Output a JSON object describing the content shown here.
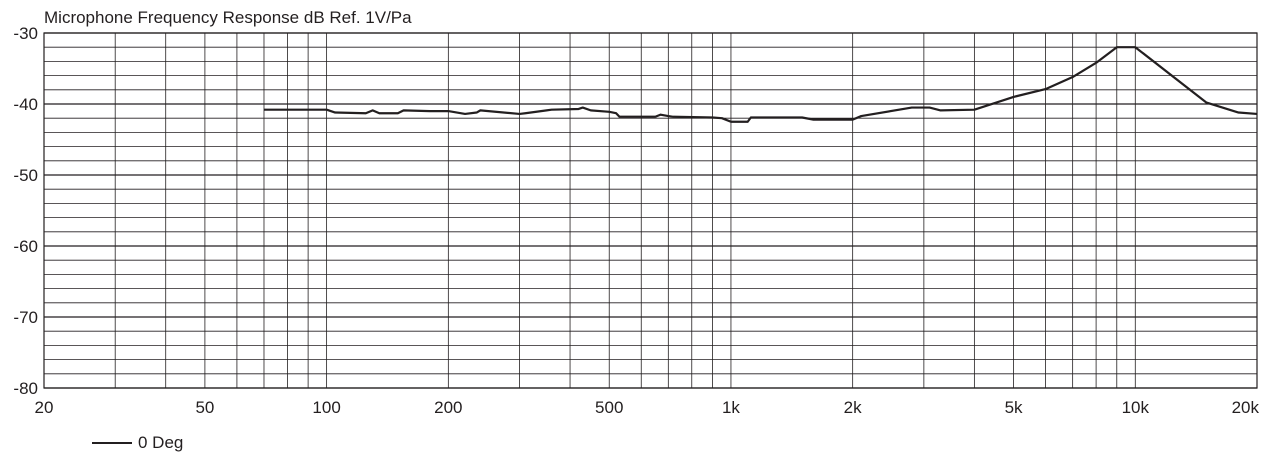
{
  "chart_data": {
    "type": "line",
    "title": "Microphone Frequency Response dB Ref. 1V/Pa",
    "xscale": "log",
    "xlim": [
      20,
      20000
    ],
    "ylim": [
      -80,
      -30
    ],
    "grid": true,
    "x_ticks": [
      {
        "value": 20,
        "label": "20"
      },
      {
        "value": 50,
        "label": "50"
      },
      {
        "value": 100,
        "label": "100"
      },
      {
        "value": 200,
        "label": "200"
      },
      {
        "value": 500,
        "label": "500"
      },
      {
        "value": 1000,
        "label": "1k"
      },
      {
        "value": 2000,
        "label": "2k"
      },
      {
        "value": 5000,
        "label": "5k"
      },
      {
        "value": 10000,
        "label": "10k"
      },
      {
        "value": 20000,
        "label": "20k"
      }
    ],
    "y_ticks": [
      {
        "value": -30,
        "label": "-30"
      },
      {
        "value": -40,
        "label": "-40"
      },
      {
        "value": -50,
        "label": "-50"
      },
      {
        "value": -60,
        "label": "-60"
      },
      {
        "value": -70,
        "label": "-70"
      },
      {
        "value": -80,
        "label": "-80"
      }
    ],
    "legend_position": "bottom-left",
    "series": [
      {
        "name": "0 Deg",
        "color": "#231f20",
        "x": [
          70,
          100,
          105,
          125,
          130,
          135,
          150,
          155,
          180,
          200,
          220,
          235,
          240,
          300,
          310,
          350,
          360,
          420,
          430,
          450,
          500,
          520,
          530,
          650,
          670,
          700,
          720,
          900,
          950,
          1000,
          1100,
          1120,
          1500,
          1600,
          2000,
          2100,
          2800,
          3100,
          3300,
          4000,
          5000,
          6000,
          7000,
          8000,
          9000,
          10000,
          15000,
          18000,
          20000
        ],
        "y": [
          -40.8,
          -40.8,
          -41.2,
          -41.3,
          -40.9,
          -41.3,
          -41.3,
          -40.9,
          -41.0,
          -41.0,
          -41.4,
          -41.2,
          -40.9,
          -41.4,
          -41.3,
          -40.9,
          -40.8,
          -40.7,
          -40.5,
          -40.9,
          -41.1,
          -41.3,
          -41.8,
          -41.8,
          -41.5,
          -41.7,
          -41.8,
          -41.9,
          -42.0,
          -42.5,
          -42.5,
          -41.9,
          -41.9,
          -42.2,
          -42.2,
          -41.7,
          -40.5,
          -40.5,
          -40.9,
          -40.8,
          -39.0,
          -37.9,
          -36.2,
          -34.2,
          -32.0,
          -32.0,
          -39.8,
          -41.2,
          -41.4
        ]
      }
    ]
  }
}
